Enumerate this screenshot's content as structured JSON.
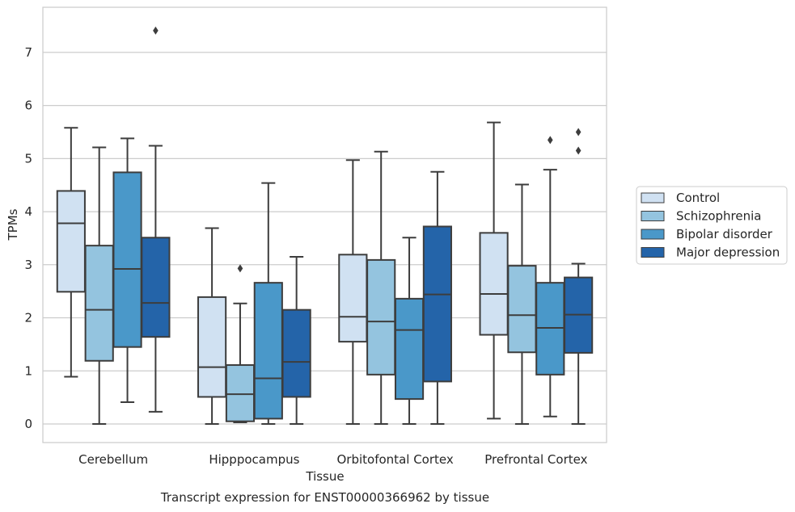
{
  "chart_data": {
    "type": "box",
    "title": "Transcript expression for ENST00000366962 by tissue",
    "xlabel": "Tissue",
    "ylabel": "TPMs",
    "ylim": [
      -0.35,
      7.85
    ],
    "yticks": [
      0,
      1,
      2,
      3,
      4,
      5,
      6,
      7
    ],
    "grid": true,
    "legend_position": "right",
    "categories": [
      "Cerebellum",
      "Hipppocampus",
      "Orbitofontal Cortex",
      "Prefrontal Cortex"
    ],
    "series": [
      {
        "name": "Control",
        "color": "#d0e1f2",
        "boxes": [
          {
            "whislo": 0.89,
            "q1": 2.49,
            "med": 3.78,
            "q3": 4.39,
            "whishi": 5.58,
            "fliers": []
          },
          {
            "whislo": 0.0,
            "q1": 0.51,
            "med": 1.07,
            "q3": 2.39,
            "whishi": 3.69,
            "fliers": []
          },
          {
            "whislo": 0.0,
            "q1": 1.55,
            "med": 2.02,
            "q3": 3.19,
            "whishi": 4.97,
            "fliers": []
          },
          {
            "whislo": 0.1,
            "q1": 1.68,
            "med": 2.45,
            "q3": 3.6,
            "whishi": 5.68,
            "fliers": []
          }
        ]
      },
      {
        "name": "Schizophrenia",
        "color": "#94c4df",
        "boxes": [
          {
            "whislo": 0.0,
            "q1": 1.19,
            "med": 2.15,
            "q3": 3.36,
            "whishi": 5.21,
            "fliers": []
          },
          {
            "whislo": 0.03,
            "q1": 0.05,
            "med": 0.56,
            "q3": 1.11,
            "whishi": 2.27,
            "fliers": [
              2.93
            ]
          },
          {
            "whislo": 0.0,
            "q1": 0.93,
            "med": 1.93,
            "q3": 3.09,
            "whishi": 5.13,
            "fliers": []
          },
          {
            "whislo": 0.0,
            "q1": 1.35,
            "med": 2.05,
            "q3": 2.98,
            "whishi": 4.51,
            "fliers": []
          }
        ]
      },
      {
        "name": "Bipolar disorder",
        "color": "#4a98c9",
        "boxes": [
          {
            "whislo": 0.41,
            "q1": 1.45,
            "med": 2.92,
            "q3": 4.74,
            "whishi": 5.38,
            "fliers": []
          },
          {
            "whislo": 0.0,
            "q1": 0.1,
            "med": 0.86,
            "q3": 2.66,
            "whishi": 4.54,
            "fliers": []
          },
          {
            "whislo": 0.0,
            "q1": 0.47,
            "med": 1.77,
            "q3": 2.36,
            "whishi": 3.51,
            "fliers": []
          },
          {
            "whislo": 0.14,
            "q1": 0.93,
            "med": 1.81,
            "q3": 2.66,
            "whishi": 4.79,
            "fliers": [
              5.35
            ]
          }
        ]
      },
      {
        "name": "Major depression",
        "color": "#2464a9",
        "boxes": [
          {
            "whislo": 0.23,
            "q1": 1.64,
            "med": 2.28,
            "q3": 3.51,
            "whishi": 5.24,
            "fliers": [
              7.41
            ]
          },
          {
            "whislo": 0.0,
            "q1": 0.51,
            "med": 1.17,
            "q3": 2.15,
            "whishi": 3.15,
            "fliers": []
          },
          {
            "whislo": 0.0,
            "q1": 0.8,
            "med": 2.44,
            "q3": 3.72,
            "whishi": 4.75,
            "fliers": []
          },
          {
            "whislo": 0.0,
            "q1": 1.34,
            "med": 2.06,
            "q3": 2.76,
            "whishi": 3.02,
            "fliers": [
              5.15,
              5.5
            ]
          }
        ]
      }
    ]
  }
}
